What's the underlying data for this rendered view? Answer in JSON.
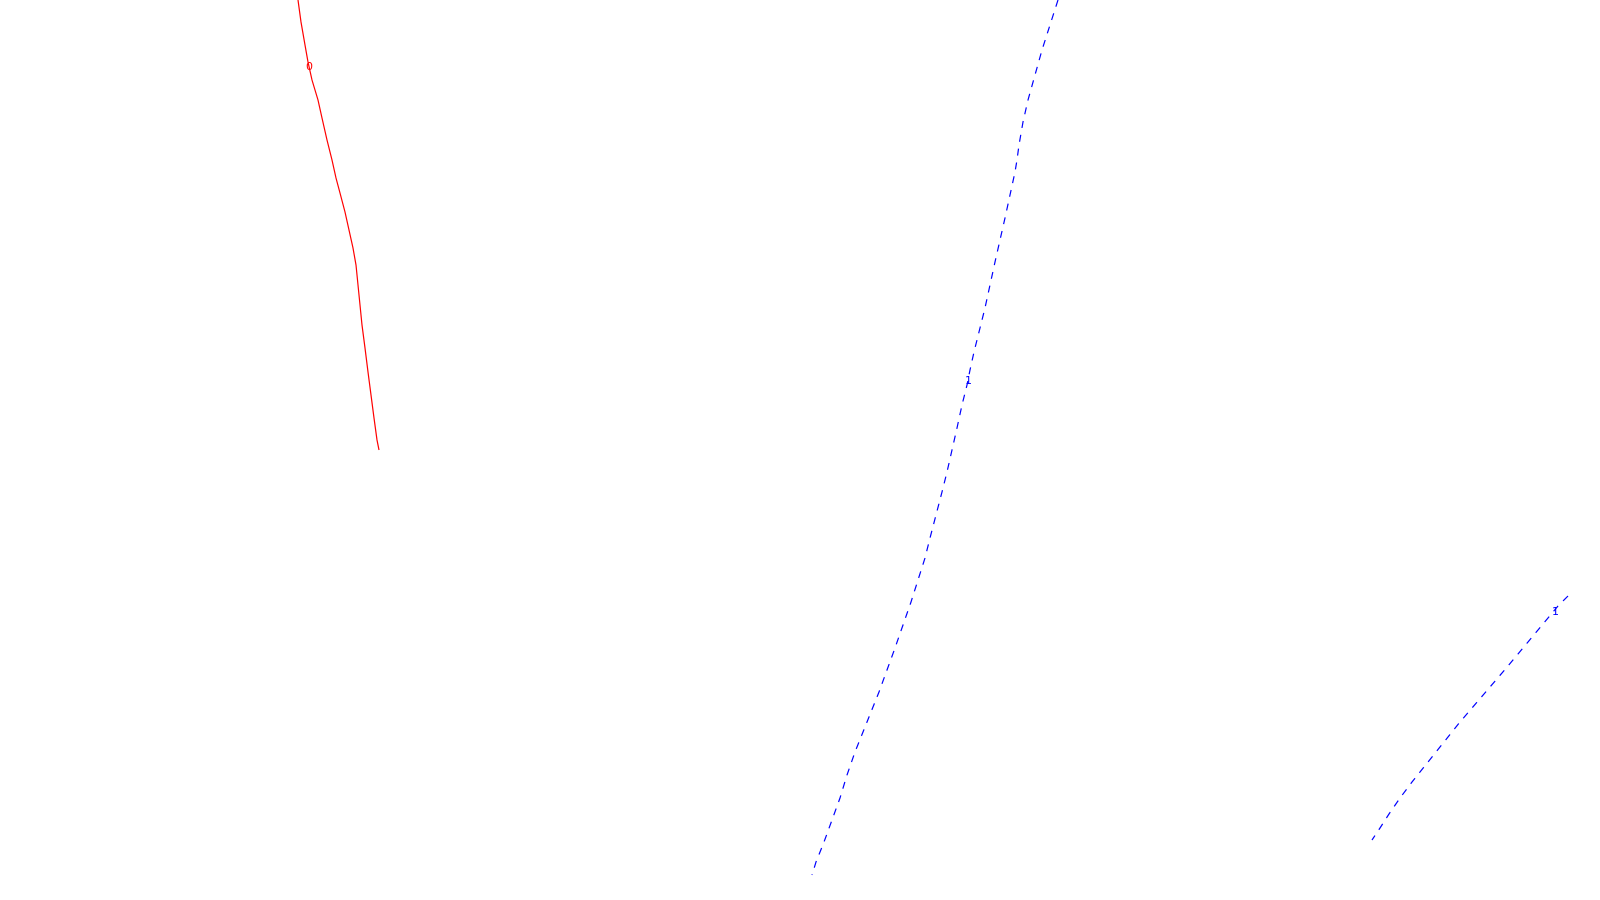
{
  "contours": [
    {
      "id": "contour-red",
      "label": "0",
      "color": "#ff0000",
      "style": "solid"
    },
    {
      "id": "contour-blue-center",
      "label": "1",
      "color": "#0000ff",
      "style": "dashed"
    },
    {
      "id": "contour-blue-right",
      "label": "1",
      "color": "#0000ff",
      "style": "dashed"
    }
  ]
}
